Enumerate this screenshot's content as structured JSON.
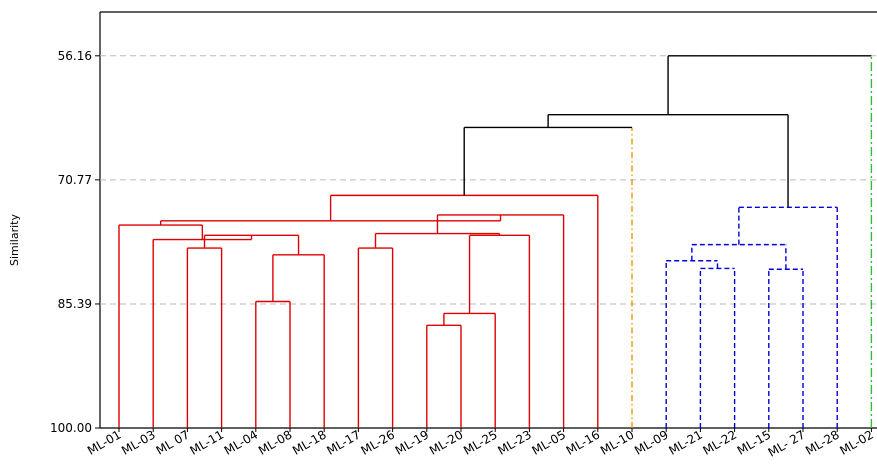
{
  "chart_data": {
    "type": "dendrogram",
    "ylabel": "Similarity",
    "y_ticks": [
      56.16,
      70.77,
      85.39,
      100.0
    ],
    "y_tick_labels": [
      "56.16",
      "70.77",
      "85.39",
      "100.00"
    ],
    "ylim": [
      100.0,
      51.0
    ],
    "grid": "horizontal dashed",
    "leaves": [
      "ML-01",
      "ML-03",
      "ML 07",
      "ML-11",
      "ML-04",
      "ML-08",
      "ML-18",
      "ML-17",
      "ML-26",
      "ML-19",
      "ML-20",
      "ML-25",
      "ML-23",
      "ML-05",
      "ML-16",
      "ML-10",
      "ML-09",
      "ML-21",
      "ML-22",
      "ML-15",
      "ML- 27",
      "ML-28",
      "ML-02"
    ],
    "colors": {
      "cluster1": "#e00000",
      "cluster2": "#e69a00",
      "cluster3": "#0000dd",
      "cluster4": "#33bb33",
      "root": "#000000",
      "grid": "#bbbbbb"
    },
    "merges": [
      {
        "id": "n1",
        "a": "ML-19",
        "b": "ML-20",
        "similarity": 87.9,
        "color": "cluster1"
      },
      {
        "id": "n2",
        "a": "ML-04",
        "b": "ML-08",
        "similarity": 85.1,
        "color": "cluster1"
      },
      {
        "id": "n3",
        "a": "n1",
        "b": "ML-25",
        "similarity": 86.5,
        "color": "cluster1"
      },
      {
        "id": "n4",
        "a": "ML-15",
        "b": "ML- 27",
        "similarity": 81.3,
        "color": "cluster3"
      },
      {
        "id": "n5",
        "a": "ML-21",
        "b": "ML-22",
        "similarity": 81.2,
        "color": "cluster3"
      },
      {
        "id": "n6",
        "a": "ML-17",
        "b": "ML-26",
        "similarity": 78.8,
        "color": "cluster1"
      },
      {
        "id": "n7",
        "a": "ML 07",
        "b": "ML-11",
        "similarity": 78.8,
        "color": "cluster1"
      },
      {
        "id": "n8",
        "a": "n2",
        "b": "ML-18",
        "similarity": 79.6,
        "color": "cluster1"
      },
      {
        "id": "n9",
        "a": "ML-09",
        "b": "n5",
        "similarity": 80.3,
        "color": "cluster3"
      },
      {
        "id": "n10",
        "a": "n3",
        "b": "ML-23",
        "similarity": 77.3,
        "color": "cluster1"
      },
      {
        "id": "n11",
        "a": "n7",
        "b": "n8",
        "similarity": 77.3,
        "color": "cluster1"
      },
      {
        "id": "n12",
        "a": "n6",
        "b": "n10",
        "similarity": 77.1,
        "color": "cluster1"
      },
      {
        "id": "n13",
        "a": "ML-03",
        "b": "n11",
        "similarity": 77.8,
        "color": "cluster1"
      },
      {
        "id": "n14",
        "a": "n9",
        "b": "n4",
        "similarity": 78.4,
        "color": "cluster3"
      },
      {
        "id": "n15",
        "a": "n12",
        "b": "ML-05",
        "similarity": 74.9,
        "color": "cluster1"
      },
      {
        "id": "n16",
        "a": "ML-01",
        "b": "n13",
        "similarity": 76.1,
        "color": "cluster1"
      },
      {
        "id": "n17",
        "a": "n16",
        "b": "n15",
        "similarity": 75.6,
        "color": "cluster1"
      },
      {
        "id": "n18",
        "a": "n14",
        "b": "ML-28",
        "similarity": 74.0,
        "color": "cluster3"
      },
      {
        "id": "n19",
        "a": "n17",
        "b": "ML-16",
        "similarity": 72.6,
        "color": "cluster1"
      },
      {
        "id": "n20",
        "a": "n19",
        "b": "ML-10",
        "similarity": 64.6,
        "color": "root",
        "b_color": "cluster2"
      },
      {
        "id": "n21",
        "a": "n20",
        "b": "n18",
        "similarity": 63.1,
        "color": "root"
      },
      {
        "id": "n22",
        "a": "n21",
        "b": "ML-02",
        "similarity": 56.16,
        "color": "root",
        "b_color": "cluster4"
      }
    ]
  }
}
